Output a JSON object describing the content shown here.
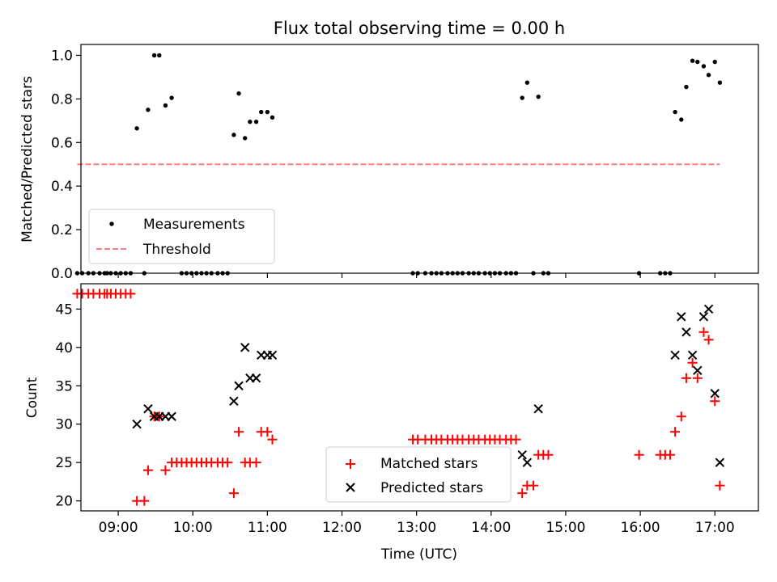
{
  "figure": {
    "title": "Flux total observing time = 0.00 h",
    "xlabel": "Time (UTC)",
    "xticks": [
      "09:00",
      "10:00",
      "11:00",
      "12:00",
      "13:00",
      "14:00",
      "15:00",
      "16:00",
      "17:00"
    ]
  },
  "chart_data": [
    {
      "type": "scatter",
      "title": "Flux total observing time = 0.00 h",
      "xlabel": "",
      "ylabel": "Matched/Predicted stars",
      "xlim": [
        "08:30",
        "17:35"
      ],
      "ylim": [
        0,
        1.05
      ],
      "yticks": [
        0.0,
        0.2,
        0.4,
        0.6,
        0.8,
        1.0
      ],
      "ytick_labels": [
        "0.0",
        "0.2",
        "0.4",
        "0.6",
        "0.8",
        "1.0"
      ],
      "grid": false,
      "legend_position": "lower-left",
      "series": [
        {
          "name": "Measurements",
          "marker": "dot",
          "color": "#000000",
          "points": [
            [
              "08:27",
              0
            ],
            [
              "08:31",
              0
            ],
            [
              "08:36",
              0
            ],
            [
              "08:40",
              0
            ],
            [
              "08:45",
              0
            ],
            [
              "08:49",
              0
            ],
            [
              "08:51",
              0
            ],
            [
              "08:54",
              0
            ],
            [
              "08:58",
              0
            ],
            [
              "09:02",
              0
            ],
            [
              "09:06",
              0
            ],
            [
              "09:10",
              0
            ],
            [
              "09:15",
              0.665
            ],
            [
              "09:21",
              0
            ],
            [
              "09:24",
              0.75
            ],
            [
              "09:29",
              1.0
            ],
            [
              "09:33",
              1.0
            ],
            [
              "09:38",
              0.77
            ],
            [
              "09:43",
              0.805
            ],
            [
              "09:51",
              0
            ],
            [
              "09:55",
              0
            ],
            [
              "09:59",
              0
            ],
            [
              "10:03",
              0
            ],
            [
              "10:07",
              0
            ],
            [
              "10:11",
              0
            ],
            [
              "10:15",
              0
            ],
            [
              "10:20",
              0
            ],
            [
              "10:24",
              0
            ],
            [
              "10:28",
              0
            ],
            [
              "10:33",
              0.635
            ],
            [
              "10:37",
              0.825
            ],
            [
              "10:42",
              0.62
            ],
            [
              "10:46",
              0.695
            ],
            [
              "10:51",
              0.695
            ],
            [
              "10:55",
              0.74
            ],
            [
              "11:00",
              0.74
            ],
            [
              "11:04",
              0.715
            ],
            [
              "12:57",
              0
            ],
            [
              "13:01",
              0
            ],
            [
              "13:07",
              0
            ],
            [
              "13:12",
              0
            ],
            [
              "13:16",
              0
            ],
            [
              "13:20",
              0
            ],
            [
              "13:25",
              0
            ],
            [
              "13:29",
              0
            ],
            [
              "13:33",
              0
            ],
            [
              "13:37",
              0
            ],
            [
              "13:42",
              0
            ],
            [
              "13:46",
              0
            ],
            [
              "13:50",
              0
            ],
            [
              "13:55",
              0
            ],
            [
              "13:59",
              0
            ],
            [
              "14:03",
              0
            ],
            [
              "14:07",
              0
            ],
            [
              "14:12",
              0
            ],
            [
              "14:16",
              0
            ],
            [
              "14:20",
              0
            ],
            [
              "14:25",
              0.805
            ],
            [
              "14:29",
              0.875
            ],
            [
              "14:34",
              0
            ],
            [
              "14:38",
              0.81
            ],
            [
              "14:42",
              0
            ],
            [
              "14:46",
              0
            ],
            [
              "15:59",
              0
            ],
            [
              "16:16",
              0
            ],
            [
              "16:20",
              0
            ],
            [
              "16:24",
              0
            ],
            [
              "16:28",
              0.74
            ],
            [
              "16:33",
              0.705
            ],
            [
              "16:37",
              0.855
            ],
            [
              "16:42",
              0.975
            ],
            [
              "16:46",
              0.97
            ],
            [
              "16:51",
              0.95
            ],
            [
              "16:55",
              0.91
            ],
            [
              "17:00",
              0.97
            ],
            [
              "17:04",
              0.875
            ]
          ]
        },
        {
          "name": "Threshold",
          "style": "dashed-line",
          "color": "#ff7f7f",
          "points": [
            [
              "08:27",
              0.5
            ],
            [
              "17:04",
              0.5
            ]
          ]
        }
      ]
    },
    {
      "type": "scatter",
      "title": "",
      "xlabel": "Time (UTC)",
      "ylabel": "Count",
      "xlim": [
        "08:30",
        "17:35"
      ],
      "ylim": [
        18.7,
        48.3
      ],
      "yticks": [
        20,
        25,
        30,
        35,
        40,
        45
      ],
      "ytick_labels": [
        "20",
        "25",
        "30",
        "35",
        "40",
        "45"
      ],
      "grid": false,
      "legend_position": "lower-center",
      "series": [
        {
          "name": "Matched stars",
          "marker": "plus",
          "color": "#ff0000",
          "points": [
            [
              "08:27",
              47
            ],
            [
              "08:31",
              47
            ],
            [
              "08:36",
              47
            ],
            [
              "08:40",
              47
            ],
            [
              "08:45",
              47
            ],
            [
              "08:49",
              47
            ],
            [
              "08:51",
              47
            ],
            [
              "08:54",
              47
            ],
            [
              "08:58",
              47
            ],
            [
              "09:02",
              47
            ],
            [
              "09:06",
              47
            ],
            [
              "09:10",
              47
            ],
            [
              "09:15",
              20
            ],
            [
              "09:21",
              20
            ],
            [
              "09:24",
              24
            ],
            [
              "09:29",
              31
            ],
            [
              "09:33",
              31
            ],
            [
              "09:38",
              24
            ],
            [
              "09:43",
              25
            ],
            [
              "09:47",
              25
            ],
            [
              "09:51",
              25
            ],
            [
              "09:55",
              25
            ],
            [
              "09:59",
              25
            ],
            [
              "10:03",
              25
            ],
            [
              "10:07",
              25
            ],
            [
              "10:11",
              25
            ],
            [
              "10:15",
              25
            ],
            [
              "10:20",
              25
            ],
            [
              "10:24",
              25
            ],
            [
              "10:28",
              25
            ],
            [
              "10:33",
              21
            ],
            [
              "10:37",
              29
            ],
            [
              "10:42",
              25
            ],
            [
              "10:46",
              25
            ],
            [
              "10:51",
              25
            ],
            [
              "10:55",
              29
            ],
            [
              "11:00",
              29
            ],
            [
              "11:04",
              28
            ],
            [
              "12:57",
              28
            ],
            [
              "13:01",
              28
            ],
            [
              "13:07",
              28
            ],
            [
              "13:12",
              28
            ],
            [
              "13:16",
              28
            ],
            [
              "13:20",
              28
            ],
            [
              "13:25",
              28
            ],
            [
              "13:29",
              28
            ],
            [
              "13:33",
              28
            ],
            [
              "13:37",
              28
            ],
            [
              "13:42",
              28
            ],
            [
              "13:46",
              28
            ],
            [
              "13:50",
              28
            ],
            [
              "13:55",
              28
            ],
            [
              "13:59",
              28
            ],
            [
              "14:03",
              28
            ],
            [
              "14:07",
              28
            ],
            [
              "14:12",
              28
            ],
            [
              "14:16",
              28
            ],
            [
              "14:20",
              28
            ],
            [
              "14:25",
              21
            ],
            [
              "14:29",
              22
            ],
            [
              "14:34",
              22
            ],
            [
              "14:38",
              26
            ],
            [
              "14:42",
              26
            ],
            [
              "14:46",
              26
            ],
            [
              "15:59",
              26
            ],
            [
              "16:16",
              26
            ],
            [
              "16:20",
              26
            ],
            [
              "16:24",
              26
            ],
            [
              "16:28",
              29
            ],
            [
              "16:33",
              31
            ],
            [
              "16:37",
              36
            ],
            [
              "16:42",
              38
            ],
            [
              "16:46",
              36
            ],
            [
              "16:51",
              42
            ],
            [
              "16:55",
              41
            ],
            [
              "17:00",
              33
            ],
            [
              "17:04",
              22
            ]
          ]
        },
        {
          "name": "Predicted stars",
          "marker": "x",
          "color": "#000000",
          "points": [
            [
              "09:15",
              30
            ],
            [
              "09:24",
              32
            ],
            [
              "09:29",
              31
            ],
            [
              "09:33",
              31
            ],
            [
              "09:38",
              31
            ],
            [
              "09:43",
              31
            ],
            [
              "10:33",
              33
            ],
            [
              "10:37",
              35
            ],
            [
              "10:42",
              40
            ],
            [
              "10:46",
              36
            ],
            [
              "10:51",
              36
            ],
            [
              "10:55",
              39
            ],
            [
              "11:00",
              39
            ],
            [
              "11:04",
              39
            ],
            [
              "14:25",
              26
            ],
            [
              "14:29",
              25
            ],
            [
              "14:38",
              32
            ],
            [
              "16:28",
              39
            ],
            [
              "16:33",
              44
            ],
            [
              "16:37",
              42
            ],
            [
              "16:42",
              39
            ],
            [
              "16:46",
              37
            ],
            [
              "16:51",
              44
            ],
            [
              "16:55",
              45
            ],
            [
              "17:00",
              34
            ],
            [
              "17:04",
              25
            ]
          ]
        }
      ]
    }
  ]
}
